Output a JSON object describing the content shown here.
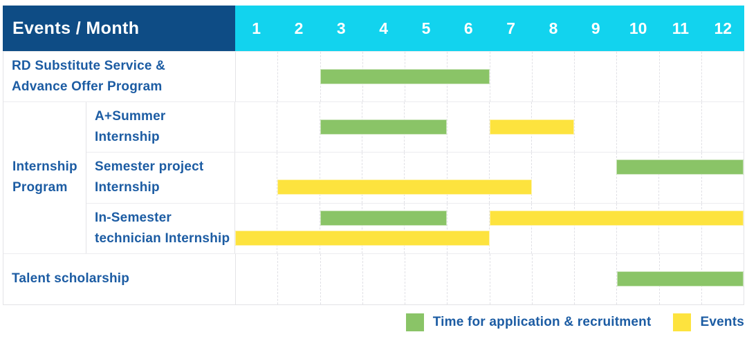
{
  "header": {
    "title": "Events / Month",
    "months": [
      "1",
      "2",
      "3",
      "4",
      "5",
      "6",
      "7",
      "8",
      "9",
      "10",
      "11",
      "12"
    ]
  },
  "colors": {
    "header_bg": "#0E4C85",
    "month_header_bg": "#12D3EE",
    "bar_green": "#8AC467",
    "bar_yellow": "#FDE33E",
    "label_text_blue": "#1C5CA3",
    "header_text": "#FFFFFF"
  },
  "rows": [
    {
      "kind": "simple",
      "label": "RD Substitute Service &\nAdvance Offer Program",
      "bars": [
        {
          "color": "green",
          "start": 3,
          "end": 6,
          "line": "center"
        }
      ]
    },
    {
      "kind": "group",
      "label": "Internship\nProgram",
      "sub_rows": [
        {
          "label": "A+Summer\nInternship",
          "bars": [
            {
              "color": "green",
              "start": 3,
              "end": 5,
              "line": "center"
            },
            {
              "color": "yellow",
              "start": 7,
              "end": 8,
              "line": "center"
            }
          ]
        },
        {
          "label": "Semester project\nInternship",
          "bars": [
            {
              "color": "green",
              "start": 10,
              "end": 12,
              "line": "top"
            },
            {
              "color": "yellow",
              "start": 2,
              "end": 7,
              "line": "bottom"
            }
          ]
        },
        {
          "label": "In-Semester\ntechnician Internship",
          "bars": [
            {
              "color": "green",
              "start": 3,
              "end": 5,
              "line": "top"
            },
            {
              "color": "yellow",
              "start": 7,
              "end": 12,
              "line": "top"
            },
            {
              "color": "yellow",
              "start": 1,
              "end": 6,
              "line": "bottom"
            }
          ]
        }
      ]
    },
    {
      "kind": "simple",
      "label": "Talent scholarship",
      "bars": [
        {
          "color": "green",
          "start": 10,
          "end": 12,
          "line": "center"
        }
      ]
    }
  ],
  "legend": {
    "items": [
      {
        "color_key": "green",
        "label": "Time for application & recruitment"
      },
      {
        "color_key": "yellow",
        "label": "Events"
      }
    ]
  },
  "chart_data": {
    "type": "bar",
    "subtype": "gantt-schedule",
    "title": "Events / Month",
    "x": {
      "label": "Month",
      "ticks": [
        "1",
        "2",
        "3",
        "4",
        "5",
        "6",
        "7",
        "8",
        "9",
        "10",
        "11",
        "12"
      ],
      "range": [
        1,
        12
      ]
    },
    "grid": "vertical-dashed",
    "legend_position": "bottom-right",
    "legend_entries": [
      "Time for application & recruitment",
      "Events"
    ],
    "series": [
      {
        "row": "RD Substitute Service & Advance Offer Program",
        "group": null,
        "bars": [
          {
            "kind": "Time for application & recruitment",
            "color": "#8AC467",
            "start_month": 3,
            "end_month": 6
          }
        ]
      },
      {
        "row": "A+Summer Internship",
        "group": "Internship Program",
        "bars": [
          {
            "kind": "Time for application & recruitment",
            "color": "#8AC467",
            "start_month": 3,
            "end_month": 5
          },
          {
            "kind": "Events",
            "color": "#FDE33E",
            "start_month": 7,
            "end_month": 8
          }
        ]
      },
      {
        "row": "Semester project Internship",
        "group": "Internship Program",
        "bars": [
          {
            "kind": "Time for application & recruitment",
            "color": "#8AC467",
            "start_month": 10,
            "end_month": 12
          },
          {
            "kind": "Events",
            "color": "#FDE33E",
            "start_month": 2,
            "end_month": 7
          }
        ]
      },
      {
        "row": "In-Semester technician Internship",
        "group": "Internship Program",
        "bars": [
          {
            "kind": "Time for application & recruitment",
            "color": "#8AC467",
            "start_month": 3,
            "end_month": 5
          },
          {
            "kind": "Events",
            "color": "#FDE33E",
            "start_month": 7,
            "end_month": 12
          },
          {
            "kind": "Events",
            "color": "#FDE33E",
            "start_month": 1,
            "end_month": 6
          }
        ]
      },
      {
        "row": "Talent scholarship",
        "group": null,
        "bars": [
          {
            "kind": "Time for application & recruitment",
            "color": "#8AC467",
            "start_month": 10,
            "end_month": 12
          }
        ]
      }
    ]
  }
}
